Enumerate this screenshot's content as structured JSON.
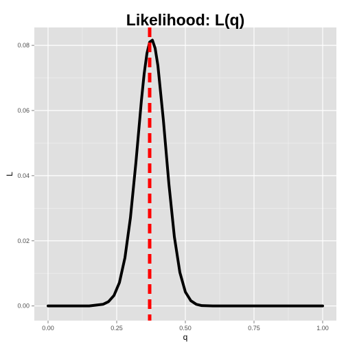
{
  "chart_data": {
    "type": "line",
    "title": "Likelihood: L(q)",
    "xlabel": "q",
    "ylabel": "L",
    "xlim": [
      -0.05,
      1.05
    ],
    "ylim": [
      -0.0045,
      0.0855
    ],
    "x_ticks": [
      0.0,
      0.25,
      0.5,
      0.75,
      1.0
    ],
    "x_tick_labels": [
      "0.00",
      "0.25",
      "0.50",
      "0.75",
      "1.00"
    ],
    "y_ticks": [
      0.0,
      0.02,
      0.04,
      0.06,
      0.08
    ],
    "y_tick_labels": [
      "0.00",
      "0.02",
      "0.04",
      "0.06",
      "0.08"
    ],
    "grid": true,
    "background": "#e0e0e0",
    "series": [
      {
        "color": "#000000",
        "x": [
          0.0,
          0.05,
          0.1,
          0.15,
          0.2,
          0.22,
          0.24,
          0.26,
          0.28,
          0.3,
          0.32,
          0.34,
          0.35,
          0.36,
          0.37,
          0.38,
          0.39,
          0.4,
          0.42,
          0.44,
          0.46,
          0.48,
          0.5,
          0.52,
          0.54,
          0.56,
          0.6,
          0.65,
          0.7,
          0.8,
          0.9,
          1.0
        ],
        "y": [
          0.0,
          0.0,
          0.0,
          0.0,
          0.0005,
          0.0013,
          0.0032,
          0.0072,
          0.0148,
          0.0271,
          0.0441,
          0.0631,
          0.0713,
          0.0775,
          0.081,
          0.0816,
          0.0791,
          0.0738,
          0.057,
          0.0375,
          0.0212,
          0.0103,
          0.0043,
          0.0016,
          0.0005,
          0.0001,
          0.0,
          0.0,
          0.0,
          0.0,
          0.0,
          0.0
        ]
      }
    ],
    "vline": {
      "x": 0.37,
      "color": "#ff0000",
      "style": "dashed"
    }
  }
}
